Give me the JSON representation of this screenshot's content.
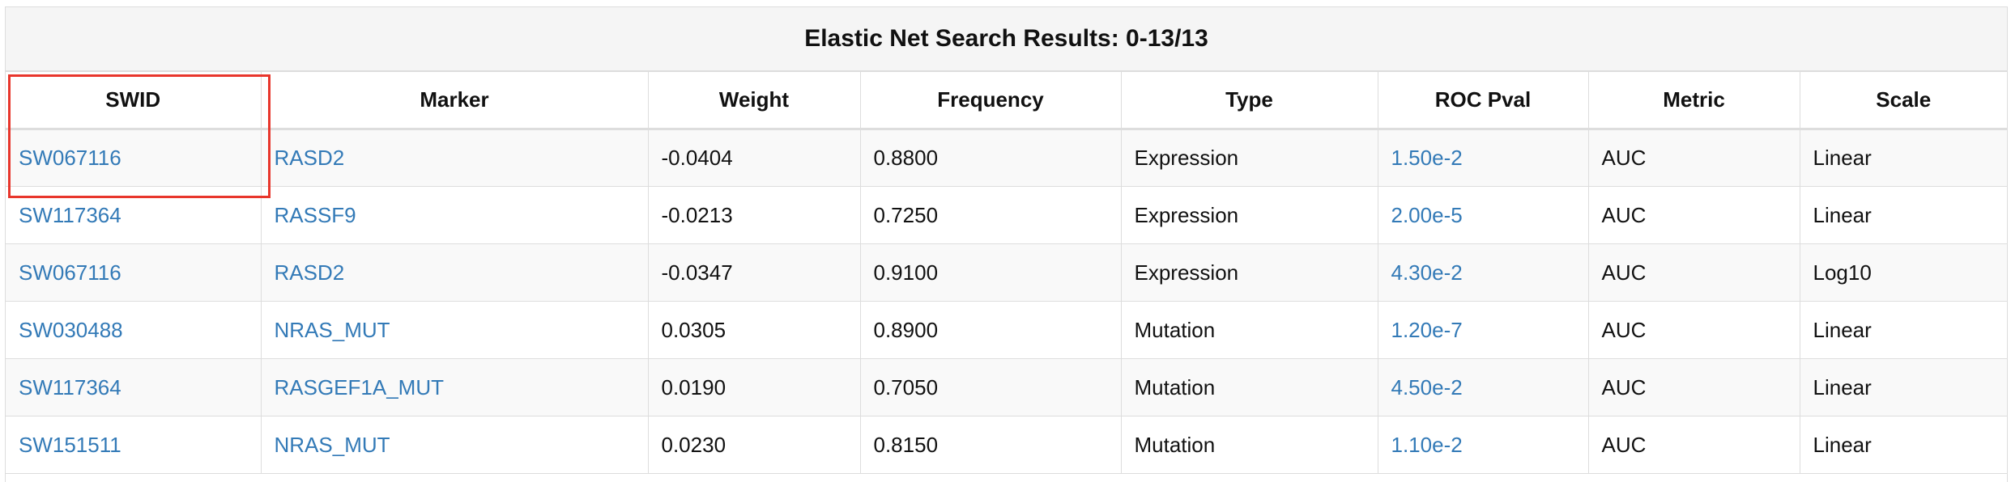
{
  "table": {
    "title": "Elastic Net Search Results: 0-13/13",
    "columns": [
      "SWID",
      "Marker",
      "Weight",
      "Frequency",
      "Type",
      "ROC Pval",
      "Metric",
      "Scale"
    ],
    "rows": [
      {
        "swid": "SW067116",
        "marker": "RASD2",
        "weight": "-0.0404",
        "frequency": "0.8800",
        "type": "Expression",
        "type_link": false,
        "roc_pval": "1.50e-2",
        "metric": "AUC",
        "scale": "Linear"
      },
      {
        "swid": "SW117364",
        "marker": "RASSF9",
        "weight": "-0.0213",
        "frequency": "0.7250",
        "type": "Expression",
        "type_link": false,
        "roc_pval": "2.00e-5",
        "metric": "AUC",
        "scale": "Linear"
      },
      {
        "swid": "SW067116",
        "marker": "RASD2",
        "weight": "-0.0347",
        "frequency": "0.9100",
        "type": "Expression",
        "type_link": false,
        "roc_pval": "4.30e-2",
        "metric": "AUC",
        "scale": "Log10"
      },
      {
        "swid": "SW030488",
        "marker": "NRAS_MUT",
        "weight": "0.0305",
        "frequency": "0.8900",
        "type": "Mutation",
        "type_link": true,
        "roc_pval": "1.20e-7",
        "metric": "AUC",
        "scale": "Linear"
      },
      {
        "swid": "SW117364",
        "marker": "RASGEF1A_MUT",
        "weight": "0.0190",
        "frequency": "0.7050",
        "type": "Mutation",
        "type_link": true,
        "roc_pval": "4.50e-2",
        "metric": "AUC",
        "scale": "Linear"
      },
      {
        "swid": "SW151511",
        "marker": "NRAS_MUT",
        "weight": "0.0230",
        "frequency": "0.8150",
        "type": "Mutation",
        "type_link": true,
        "roc_pval": "1.10e-2",
        "metric": "AUC",
        "scale": "Linear"
      }
    ]
  },
  "colors": {
    "link": "#337ab7",
    "highlight": "#e8362c",
    "header_bg": "#f5f5f5",
    "border": "#dddddd"
  }
}
